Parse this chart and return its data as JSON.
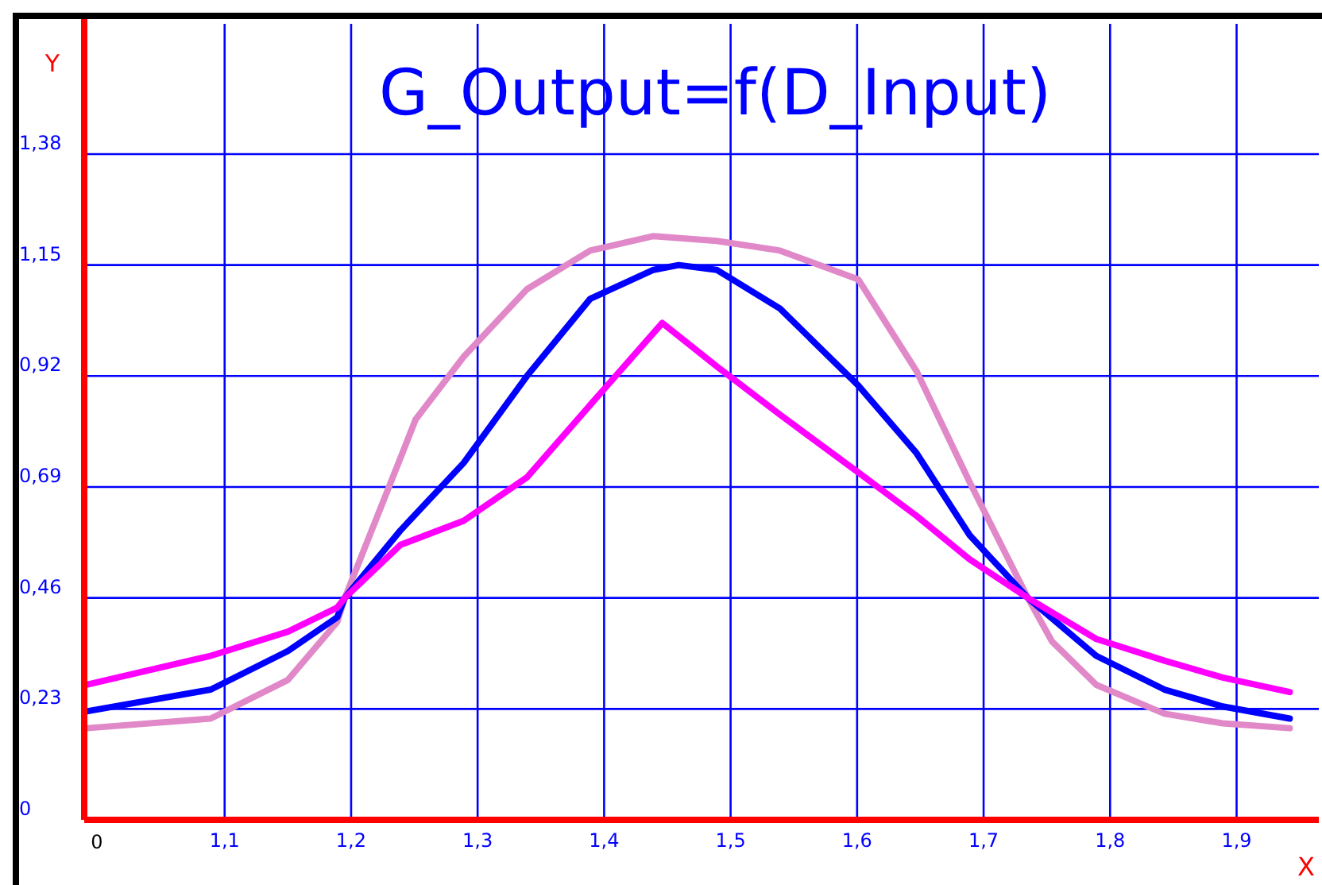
{
  "chart_data": {
    "type": "line",
    "title": "G_Output=f(D_Input)",
    "xlabel": "X",
    "ylabel": "Y",
    "xlim": [
      0.989,
      1.965
    ],
    "ylim": [
      0,
      1.65
    ],
    "annotations": [
      "0"
    ],
    "xticks": [
      {
        "value": 1.1,
        "label": "1,1"
      },
      {
        "value": 1.2,
        "label": "1,2"
      },
      {
        "value": 1.3,
        "label": "1,3"
      },
      {
        "value": 1.4,
        "label": "1,4"
      },
      {
        "value": 1.5,
        "label": "1,5"
      },
      {
        "value": 1.6,
        "label": "1,6"
      },
      {
        "value": 1.7,
        "label": "1,7"
      },
      {
        "value": 1.8,
        "label": "1,8"
      },
      {
        "value": 1.9,
        "label": "1,9"
      }
    ],
    "yticks": [
      0,
      {
        "value": 0.23,
        "label": "0,23"
      },
      {
        "value": 0.46,
        "label": "0,46"
      },
      {
        "value": 0.69,
        "label": "0,69"
      },
      {
        "value": 0.92,
        "label": "0,92"
      },
      {
        "value": 1.15,
        "label": "1,15"
      },
      {
        "value": 1.38,
        "label": "1,38"
      }
    ],
    "grid": true,
    "marker": "none",
    "line_style": "solid",
    "series": [
      {
        "color": "#e088c8",
        "x": [
          0.991,
          1.089,
          1.15,
          1.189,
          1.195,
          1.239,
          1.251,
          1.289,
          1.339,
          1.389,
          1.439,
          1.489,
          1.539,
          1.601,
          1.647,
          1.689,
          1.735,
          1.754,
          1.789,
          1.843,
          1.889,
          1.942
        ],
        "values": [
          0.19,
          0.21,
          0.29,
          0.41,
          0.46,
          0.75,
          0.83,
          0.96,
          1.1,
          1.18,
          1.21,
          1.2,
          1.18,
          1.12,
          0.93,
          0.7,
          0.46,
          0.37,
          0.28,
          0.22,
          0.2,
          0.19
        ]
      },
      {
        "color": "#0000ff",
        "x": [
          0.991,
          1.089,
          1.15,
          1.189,
          1.195,
          1.239,
          1.289,
          1.339,
          1.389,
          1.439,
          1.459,
          1.489,
          1.539,
          1.601,
          1.647,
          1.689,
          1.735,
          1.789,
          1.843,
          1.889,
          1.942
        ],
        "values": [
          0.225,
          0.27,
          0.35,
          0.42,
          0.46,
          0.6,
          0.74,
          0.92,
          1.08,
          1.14,
          1.15,
          1.14,
          1.06,
          0.9,
          0.76,
          0.59,
          0.46,
          0.34,
          0.27,
          0.235,
          0.21
        ]
      },
      {
        "color": "#ff00ff",
        "x": [
          0.991,
          1.089,
          1.15,
          1.189,
          1.195,
          1.239,
          1.289,
          1.339,
          1.389,
          1.446,
          1.489,
          1.539,
          1.601,
          1.647,
          1.689,
          1.735,
          1.789,
          1.843,
          1.889,
          1.942
        ],
        "values": [
          0.28,
          0.34,
          0.39,
          0.44,
          0.46,
          0.57,
          0.62,
          0.71,
          0.86,
          1.03,
          0.94,
          0.84,
          0.72,
          0.63,
          0.54,
          0.46,
          0.375,
          0.33,
          0.295,
          0.265
        ]
      }
    ]
  }
}
